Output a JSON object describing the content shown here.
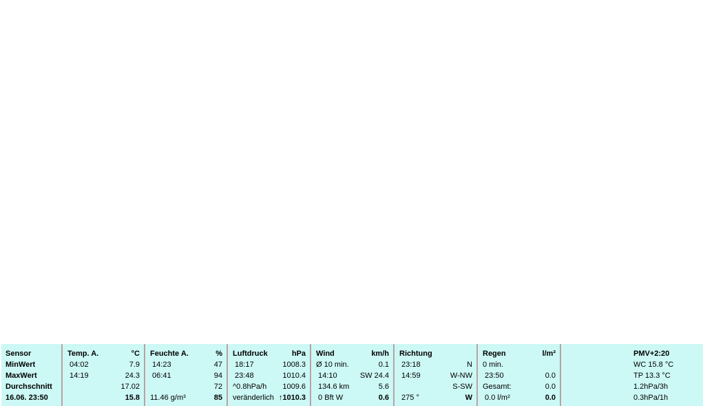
{
  "colors": {
    "panel_bg": "#ccf8f5",
    "separator": "#a8a8a8"
  },
  "columns": [
    {
      "id": "sensor",
      "width": 87,
      "rows": [
        {
          "left": "Sensor",
          "right": "",
          "bold": true
        },
        {
          "left": "MinWert",
          "right": "",
          "bold": true
        },
        {
          "left": "MaxWert",
          "right": "",
          "bold": true
        },
        {
          "left": "Durchschnitt",
          "right": "",
          "bold": true
        },
        {
          "left": "16.06. 23:50",
          "right": "",
          "bold": true
        }
      ]
    },
    {
      "id": "temp",
      "width": 117,
      "rows": [
        {
          "left": "Temp. A.",
          "right": "°C",
          "bold": true
        },
        {
          "left": " 04:02",
          "right": "7.9"
        },
        {
          "left": " 14:19",
          "right": "24.3"
        },
        {
          "left": "",
          "right": "17.02"
        },
        {
          "left": "",
          "right": "15.8",
          "rbold": true
        }
      ]
    },
    {
      "id": "humidity",
      "width": 117,
      "rows": [
        {
          "left": "Feuchte A.",
          "right": "%",
          "bold": true
        },
        {
          "left": " 14:23",
          "right": "47"
        },
        {
          "left": " 06:41",
          "right": "94"
        },
        {
          "left": "",
          "right": "72"
        },
        {
          "left": "11.46 g/m³",
          "right": "85",
          "rbold": true
        }
      ]
    },
    {
      "id": "pressure",
      "width": 118,
      "rows": [
        {
          "left": "Luftdruck",
          "right": "hPa",
          "bold": true
        },
        {
          "left": " 18:17",
          "right": "1008.3"
        },
        {
          "left": " 23:48",
          "right": "1010.4"
        },
        {
          "left": "^0.8hPa/h",
          "right": "1009.6"
        },
        {
          "left": "veränderlich",
          "right": "↑1010.3",
          "rbold": true
        }
      ]
    },
    {
      "id": "wind",
      "width": 118,
      "rows": [
        {
          "left": "Wind",
          "right": "km/h",
          "bold": true
        },
        {
          "left": "Ø 10 min.",
          "right": "0.1"
        },
        {
          "left": " 14:10",
          "right": "SW 24.4"
        },
        {
          "left": " 134.6 km",
          "right": "5.6"
        },
        {
          "left": " 0 Bft W",
          "right": "0.6",
          "rbold": true
        }
      ]
    },
    {
      "id": "direction",
      "width": 118,
      "rows": [
        {
          "left": "Richtung",
          "right": "",
          "bold": true
        },
        {
          "left": " 23:18",
          "right": "N"
        },
        {
          "left": " 14:59",
          "right": "W-NW"
        },
        {
          "left": "",
          "right": "S-SW"
        },
        {
          "left": " 275 °",
          "right": "W",
          "rbold": true
        }
      ]
    },
    {
      "id": "rain",
      "width": 118,
      "rows": [
        {
          "left": "Regen",
          "right": "l/m²",
          "bold": true
        },
        {
          "left": "0 min.",
          "right": ""
        },
        {
          "left": " 23:50",
          "right": "0.0"
        },
        {
          "left": "Gesamt:",
          "right": "0.0"
        },
        {
          "left": " 0.0 l/m²",
          "right": "0.0",
          "rbold": true
        }
      ]
    }
  ],
  "extra": [
    {
      "text": "PMV+2:20",
      "bold": true
    },
    {
      "text": "WC 15.8 °C"
    },
    {
      "text": "TP 13.3 °C"
    },
    {
      "text": "1.2hPa/3h"
    },
    {
      "text": "0.3hPa/1h"
    }
  ]
}
